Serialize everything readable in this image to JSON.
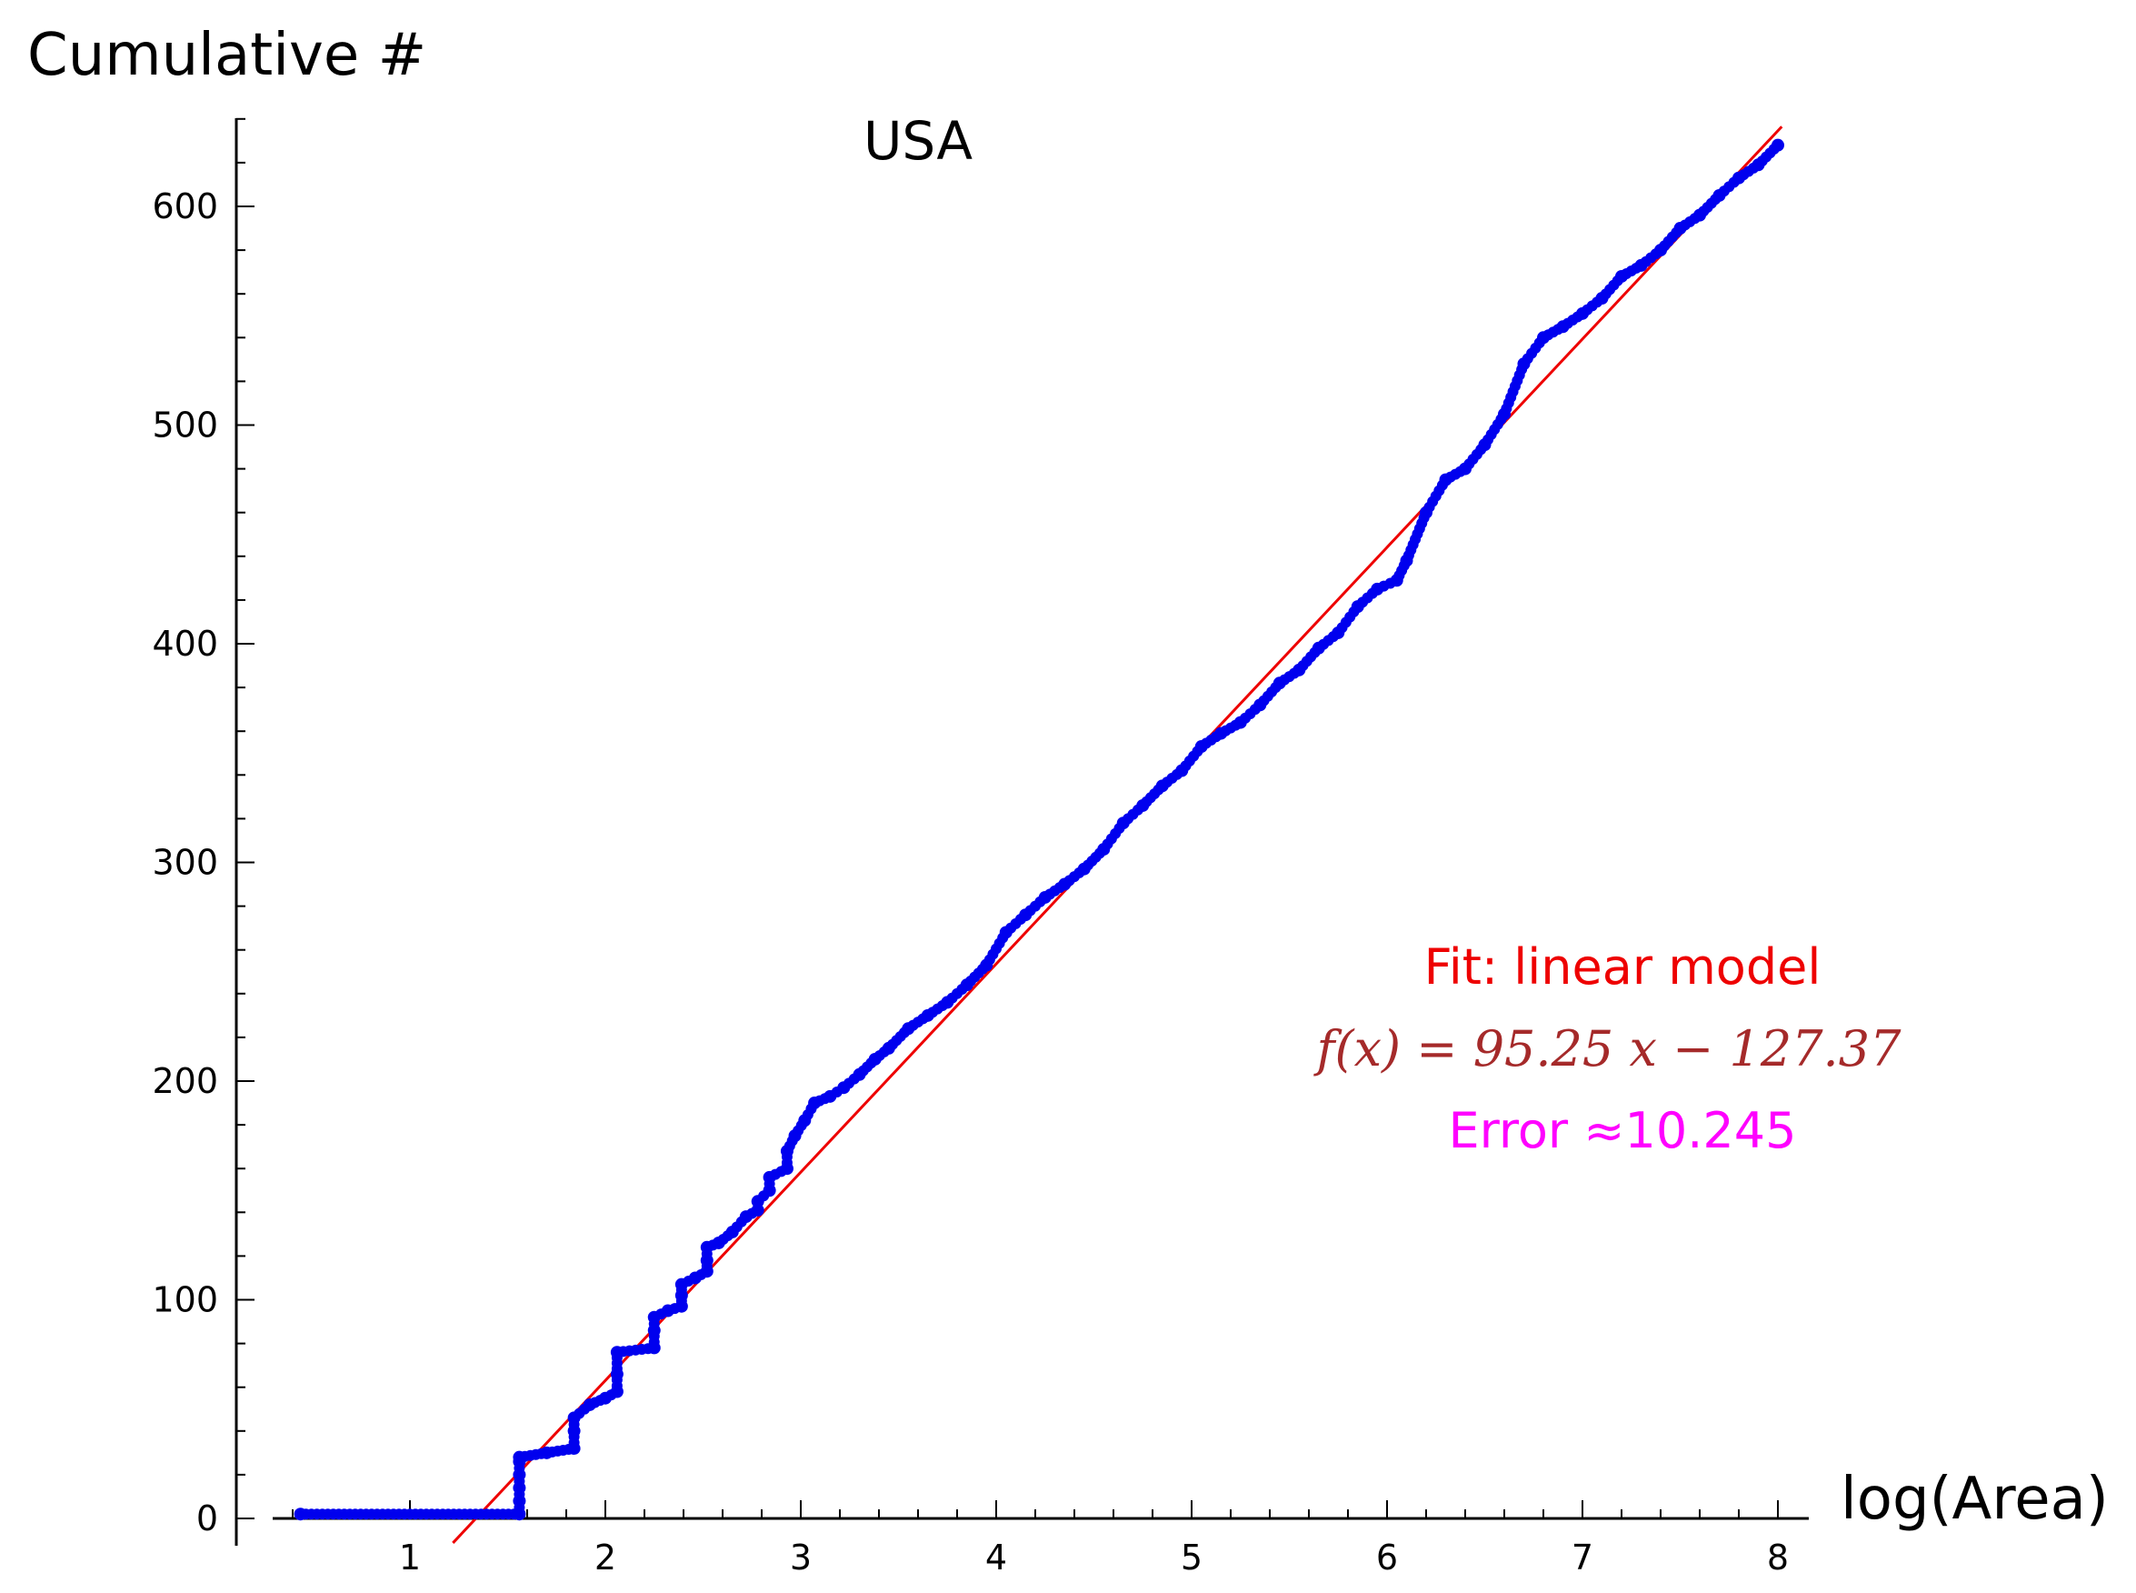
{
  "chart_data": {
    "type": "scatter",
    "title": "USA",
    "xlabel": "log(Area)",
    "ylabel": "Cumulative #",
    "xlim": [
      0,
      8
    ],
    "ylim": [
      0,
      640
    ],
    "x_ticks": [
      "1",
      "2",
      "3",
      "4",
      "5",
      "6",
      "7",
      "8"
    ],
    "y_ticks": [
      "0",
      "100",
      "200",
      "300",
      "400",
      "500",
      "600"
    ],
    "grid": false,
    "colors": {
      "points": "#0000ee",
      "fit": "#ee0000",
      "formula": "#a52a2a",
      "error": "#ff00ff"
    },
    "series": [
      {
        "type": "scatter",
        "x": [
          0.44,
          1.56,
          1.56,
          1.56,
          1.56,
          1.56,
          1.56,
          1.7,
          1.84,
          1.84,
          1.84,
          1.92,
          2.0,
          2.06,
          2.06,
          2.06,
          2.25,
          2.25,
          2.25,
          2.32,
          2.39,
          2.39,
          2.39,
          2.46,
          2.52,
          2.52,
          2.52,
          2.58,
          2.65,
          2.72,
          2.78,
          2.78,
          2.84,
          2.84,
          2.93,
          2.93,
          2.97,
          3.02,
          3.07,
          3.15,
          3.22,
          3.3,
          3.38,
          3.45,
          3.55,
          3.65,
          3.75,
          3.85,
          3.95,
          4.05,
          4.15,
          4.25,
          4.35,
          4.45,
          4.55,
          4.65,
          4.75,
          4.85,
          4.95,
          5.05,
          5.15,
          5.25,
          5.35,
          5.45,
          5.55,
          5.65,
          5.75,
          5.85,
          5.95,
          6.05,
          6.1,
          6.2,
          6.3,
          6.4,
          6.5,
          6.6,
          6.7,
          6.8,
          6.9,
          7.0,
          7.1,
          7.2,
          7.3,
          7.4,
          7.5,
          7.6,
          7.7,
          7.8,
          7.9,
          8.0
        ],
        "y": [
          2,
          2,
          8,
          14,
          20,
          26,
          28,
          30,
          32,
          40,
          46,
          52,
          55,
          58,
          66,
          76,
          78,
          86,
          92,
          95,
          97,
          102,
          107,
          110,
          113,
          118,
          124,
          126,
          131,
          138,
          141,
          145,
          150,
          156,
          160,
          168,
          175,
          182,
          190,
          193,
          197,
          203,
          210,
          215,
          224,
          230,
          236,
          244,
          253,
          268,
          276,
          284,
          290,
          297,
          306,
          318,
          326,
          335,
          342,
          353,
          359,
          364,
          372,
          382,
          388,
          398,
          405,
          417,
          425,
          429,
          438,
          460,
          475,
          480,
          491,
          505,
          528,
          540,
          545,
          551,
          558,
          568,
          573,
          580,
          590,
          596,
          605,
          613,
          619,
          628
        ]
      },
      {
        "type": "line",
        "x": [
          1.22,
          8.02
        ],
        "y": [
          -11.2,
          636.5
        ]
      }
    ],
    "annotations": {
      "fit_label": "Fit: linear model",
      "formula": "f(x) = 95.25 x − 127.37",
      "error": "Error ≈10.245"
    }
  }
}
